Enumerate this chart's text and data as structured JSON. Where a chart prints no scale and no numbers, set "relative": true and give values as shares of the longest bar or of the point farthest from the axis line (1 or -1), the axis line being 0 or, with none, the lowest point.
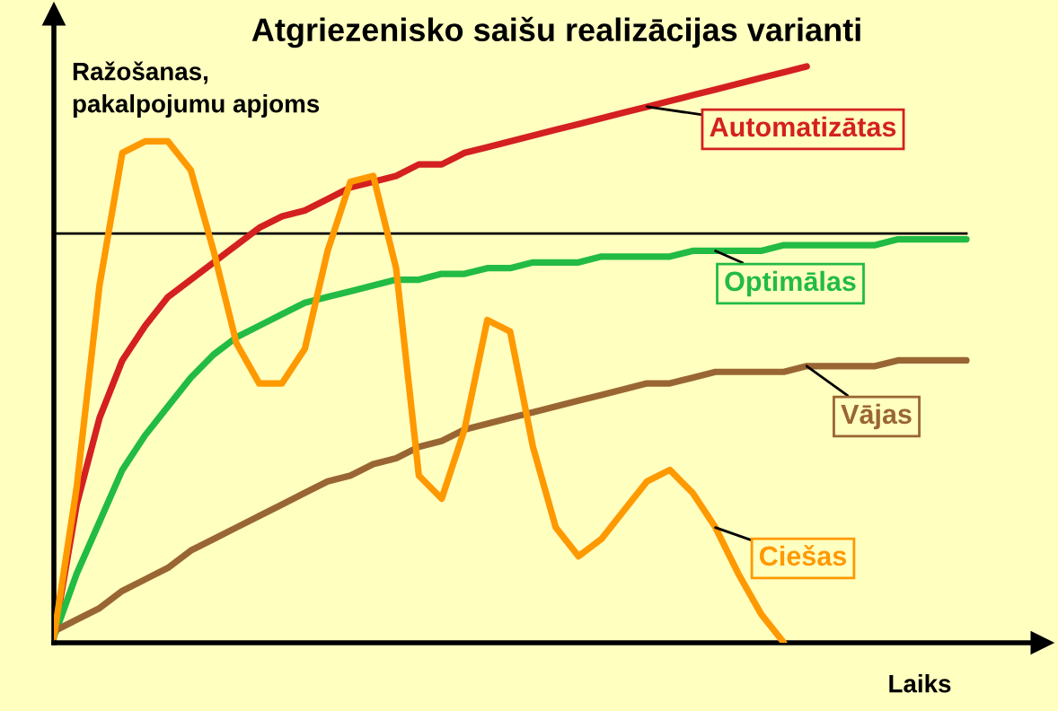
{
  "chart_data": {
    "type": "line",
    "title": "Atgriezenisko saišu realizācijas varianti",
    "xlabel": "Laiks",
    "ylabel": "Ražošanas,\npakalpojumu apjoms",
    "relative": true,
    "grid": false,
    "legend": false,
    "marker": "none",
    "line_style": "solid",
    "categories": [
      null,
      null,
      null,
      null,
      null,
      null,
      null,
      null,
      null,
      null,
      null,
      null,
      null,
      null,
      null,
      null,
      null,
      null,
      null,
      null,
      null,
      null,
      null,
      null,
      null,
      null,
      null,
      null,
      null,
      null,
      null,
      null,
      null,
      null,
      null,
      null,
      null,
      null,
      null,
      null,
      null
    ],
    "ref_lines": [
      {
        "axis": "y",
        "value": 0.71,
        "color": "#000000"
      }
    ],
    "series": [
      {
        "name": "Automatizātas",
        "color": "#d42020",
        "values": [
          0.01,
          0.24,
          0.39,
          0.49,
          0.55,
          0.6,
          0.63,
          0.66,
          0.69,
          0.72,
          0.74,
          0.75,
          0.77,
          0.79,
          0.8,
          0.81,
          0.83,
          0.83,
          0.85,
          0.86,
          0.87,
          0.88,
          0.89,
          0.9,
          0.91,
          0.92,
          0.93,
          0.94,
          0.95,
          0.96,
          0.97,
          0.98,
          0.99,
          1.0,
          null,
          null,
          null,
          null,
          null,
          null,
          null
        ]
      },
      {
        "name": "Optimālas",
        "color": "#22bb44",
        "values": [
          0.01,
          0.12,
          0.21,
          0.3,
          0.36,
          0.41,
          0.46,
          0.5,
          0.53,
          0.55,
          0.57,
          0.59,
          0.6,
          0.61,
          0.62,
          0.63,
          0.63,
          0.64,
          0.64,
          0.65,
          0.65,
          0.66,
          0.66,
          0.66,
          0.67,
          0.67,
          0.67,
          0.67,
          0.68,
          0.68,
          0.68,
          0.68,
          0.69,
          0.69,
          0.69,
          0.69,
          0.69,
          0.7,
          0.7,
          0.7,
          0.7
        ]
      },
      {
        "name": "Vājas",
        "color": "#996633",
        "values": [
          0.02,
          0.04,
          0.06,
          0.09,
          0.11,
          0.13,
          0.16,
          0.18,
          0.2,
          0.22,
          0.24,
          0.26,
          0.28,
          0.29,
          0.31,
          0.32,
          0.34,
          0.35,
          0.37,
          0.38,
          0.39,
          0.4,
          0.41,
          0.42,
          0.43,
          0.44,
          0.45,
          0.45,
          0.46,
          0.47,
          0.47,
          0.47,
          0.47,
          0.48,
          0.48,
          0.48,
          0.48,
          0.49,
          0.49,
          0.49,
          0.49
        ]
      },
      {
        "name": "Ciešas",
        "color": "#ff9900",
        "values": [
          0.01,
          0.27,
          0.62,
          0.85,
          0.87,
          0.87,
          0.82,
          0.68,
          0.52,
          0.45,
          0.45,
          0.51,
          0.68,
          0.8,
          0.81,
          0.65,
          0.29,
          0.25,
          0.37,
          0.56,
          0.54,
          0.34,
          0.2,
          0.15,
          0.18,
          0.23,
          0.28,
          0.3,
          0.26,
          0.2,
          0.12,
          0.05,
          0.0,
          null,
          null,
          null,
          null,
          null,
          null,
          null,
          null
        ]
      }
    ]
  }
}
